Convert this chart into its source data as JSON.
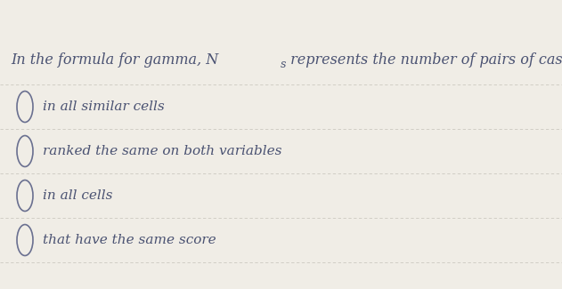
{
  "background_color": "#f0ede6",
  "title_main": "In the formula for gamma, N",
  "title_subscript": "s",
  "title_suffix": " represents the number of pairs of cases",
  "options": [
    "in all similar cells",
    "ranked the same on both variables",
    "in all cells",
    "that have the same score"
  ],
  "text_color": "#4a5272",
  "title_color": "#4a5272",
  "circle_color": "#6a7090",
  "divider_color": "#c8c4bc",
  "font_size_title": 11.5,
  "font_size_options": 11,
  "font_size_subscript": 9
}
